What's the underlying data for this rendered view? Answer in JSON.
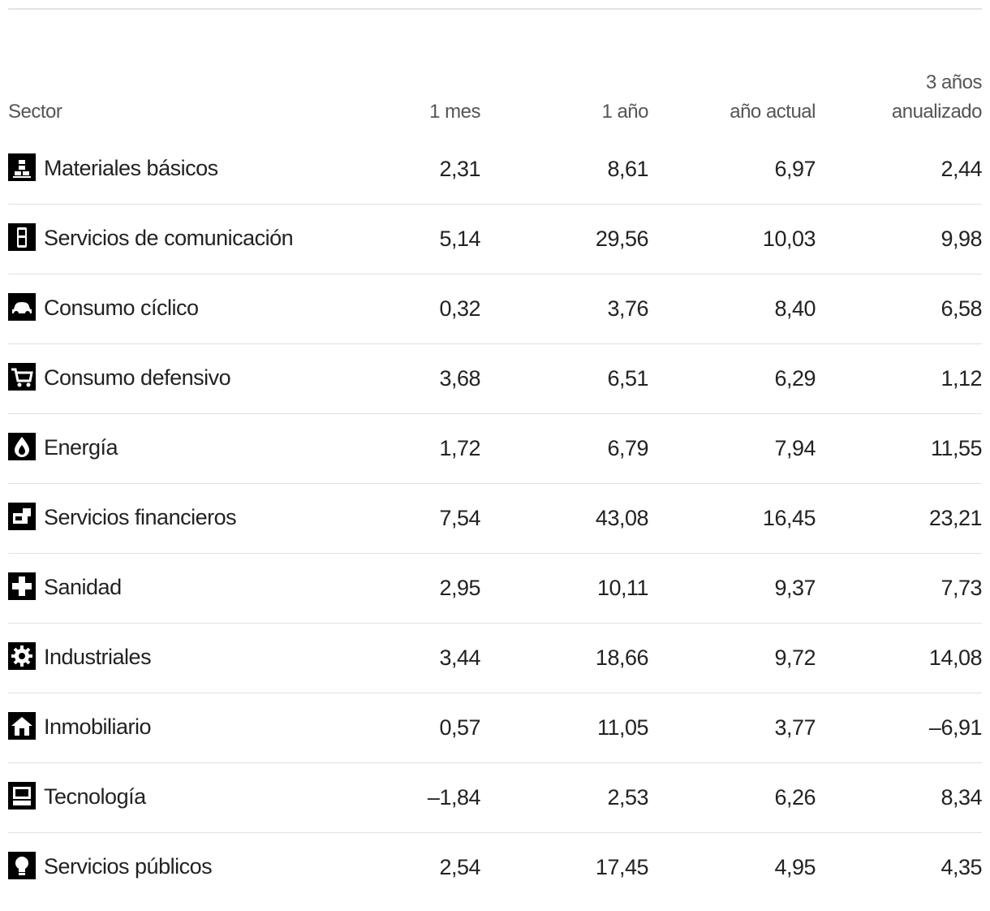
{
  "table": {
    "headers": [
      "Sector",
      "1 mes",
      "1 año",
      "año actual",
      "3 años anualizado"
    ],
    "rows": [
      [
        "Materiales básicos",
        "2,31",
        "8,61",
        "6,97",
        "2,44"
      ],
      [
        "Servicios de comunicación",
        "5,14",
        "29,56",
        "10,03",
        "9,98"
      ],
      [
        "Consumo cíclico",
        "0,32",
        "3,76",
        "8,40",
        "6,58"
      ],
      [
        "Consumo defensivo",
        "3,68",
        "6,51",
        "6,29",
        "1,12"
      ],
      [
        "Energía",
        "1,72",
        "6,79",
        "7,94",
        "11,55"
      ],
      [
        "Servicios financieros",
        "7,54",
        "43,08",
        "16,45",
        "23,21"
      ],
      [
        "Sanidad",
        "2,95",
        "10,11",
        "9,37",
        "7,73"
      ],
      [
        "Industriales",
        "3,44",
        "18,66",
        "9,72",
        "14,08"
      ],
      [
        "Inmobiliario",
        "0,57",
        "11,05",
        "3,77",
        "–6,91"
      ],
      [
        "Tecnología",
        "–1,84",
        "2,53",
        "6,26",
        "8,34"
      ],
      [
        "Servicios públicos",
        "2,54",
        "17,45",
        "4,95",
        "4,35"
      ]
    ]
  }
}
